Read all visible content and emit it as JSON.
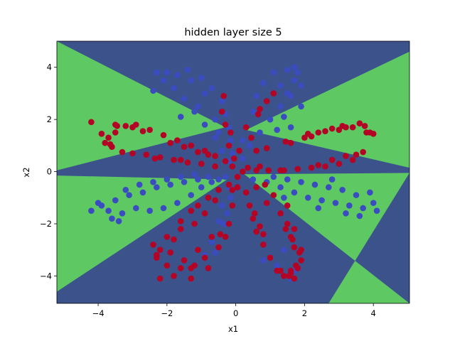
{
  "chart_data": {
    "type": "scatter",
    "title": "hidden layer size 5",
    "xlabel": "x1",
    "ylabel": "x2",
    "xlim": [
      -5.2,
      5.05
    ],
    "ylim": [
      -5.05,
      5.0
    ],
    "xticks": [
      -4,
      -2,
      0,
      2,
      4
    ],
    "yticks": [
      -4,
      -2,
      0,
      2,
      4
    ],
    "xtick_labels": [
      "−4",
      "−2",
      "0",
      "2",
      "4"
    ],
    "ytick_labels": [
      "−4",
      "−2",
      "0",
      "2",
      "4"
    ],
    "grid": false,
    "background": {
      "kind": "decision-regions",
      "colors": {
        "class_0": "#3b528b",
        "class_1": "#5ec962"
      },
      "class_1_regions": [
        [
          [
            -5.2,
            5.0
          ],
          [
            -0.3,
            1.7
          ],
          [
            -5.2,
            0.05
          ]
        ],
        [
          [
            5.05,
            4.6
          ],
          [
            0.3,
            1.6
          ],
          [
            5.05,
            0.15
          ]
        ],
        [
          [
            -5.2,
            -0.15
          ],
          [
            -0.25,
            -0.3
          ],
          [
            -5.2,
            -4.6
          ]
        ],
        [
          [
            5.05,
            -0.05
          ],
          [
            0.25,
            -0.1
          ],
          [
            5.05,
            -5.05
          ],
          [
            2.7,
            -5.05
          ]
        ]
      ]
    },
    "series": [
      {
        "color": "#3b4cc0",
        "points": [
          [
            -2.5,
            -1.5
          ],
          [
            -2.1,
            -1.4
          ],
          [
            -1.7,
            -1.2
          ],
          [
            -1.3,
            -0.9
          ],
          [
            -1.0,
            -0.6
          ],
          [
            -0.7,
            -0.4
          ],
          [
            -0.5,
            -0.3
          ],
          [
            -0.3,
            -0.2
          ],
          [
            -3.7,
            -1.5
          ],
          [
            -3.3,
            -1.6
          ],
          [
            -2.9,
            -1.4
          ],
          [
            -3.9,
            -1.3
          ],
          [
            -3.5,
            -1.1
          ],
          [
            -3.1,
            -0.9
          ],
          [
            -2.7,
            -0.8
          ],
          [
            -2.3,
            -0.6
          ],
          [
            -1.9,
            -0.5
          ],
          [
            -1.5,
            -0.4
          ],
          [
            -1.1,
            -0.3
          ],
          [
            -0.8,
            -0.2
          ],
          [
            -4.2,
            -1.5
          ],
          [
            -3.6,
            -1.8
          ],
          [
            -3.2,
            -0.7
          ],
          [
            -2.8,
            -0.5
          ],
          [
            -2.4,
            -0.4
          ],
          [
            -2.0,
            -0.3
          ],
          [
            -1.6,
            -0.2
          ],
          [
            -1.2,
            -0.1
          ],
          [
            -3.4,
            -1.9
          ],
          [
            -4.0,
            -1.2
          ],
          [
            -0.2,
            0.4
          ],
          [
            -0.4,
            0.8
          ],
          [
            -0.6,
            1.3
          ],
          [
            -0.9,
            1.8
          ],
          [
            -1.2,
            2.3
          ],
          [
            -1.5,
            2.8
          ],
          [
            -1.8,
            3.2
          ],
          [
            -2.1,
            3.5
          ],
          [
            -2.3,
            3.8
          ],
          [
            -1.4,
            3.9
          ],
          [
            -1.0,
            3.6
          ],
          [
            -0.7,
            3.2
          ],
          [
            -0.4,
            2.7
          ],
          [
            -0.3,
            2.2
          ],
          [
            -0.2,
            1.7
          ],
          [
            -0.15,
            1.2
          ],
          [
            -0.1,
            0.7
          ],
          [
            -2.0,
            3.8
          ],
          [
            -1.7,
            3.7
          ],
          [
            -1.3,
            3.5
          ],
          [
            -0.9,
            3.0
          ],
          [
            -1.6,
            2.1
          ],
          [
            -2.4,
            3.1
          ],
          [
            -0.6,
            2.0
          ],
          [
            -0.5,
            1.5
          ],
          [
            -1.1,
            2.5
          ],
          [
            0.2,
            0.5
          ],
          [
            0.4,
            1.0
          ],
          [
            0.7,
            1.5
          ],
          [
            1.0,
            2.0
          ],
          [
            1.3,
            2.5
          ],
          [
            1.5,
            3.0
          ],
          [
            1.7,
            3.5
          ],
          [
            1.8,
            3.8
          ],
          [
            1.5,
            3.9
          ],
          [
            1.1,
            3.8
          ],
          [
            0.8,
            3.4
          ],
          [
            0.6,
            2.9
          ],
          [
            0.5,
            2.3
          ],
          [
            0.3,
            1.7
          ],
          [
            0.2,
            1.2
          ],
          [
            1.6,
            2.9
          ],
          [
            1.4,
            2.1
          ],
          [
            1.9,
            3.3
          ],
          [
            1.2,
            1.6
          ],
          [
            0.9,
            2.7
          ],
          [
            1.7,
            4.0
          ],
          [
            1.3,
            3.3
          ],
          [
            1.6,
            1.7
          ],
          [
            1.9,
            2.5
          ],
          [
            0.5,
            -0.3
          ],
          [
            0.9,
            -0.4
          ],
          [
            1.3,
            -0.6
          ],
          [
            1.7,
            -0.8
          ],
          [
            2.1,
            -1.0
          ],
          [
            2.5,
            -1.1
          ],
          [
            2.9,
            -1.2
          ],
          [
            3.3,
            -1.3
          ],
          [
            3.7,
            -1.4
          ],
          [
            4.0,
            -1.2
          ],
          [
            3.5,
            -0.9
          ],
          [
            3.1,
            -0.7
          ],
          [
            2.7,
            -0.6
          ],
          [
            2.3,
            -0.5
          ],
          [
            1.9,
            -0.4
          ],
          [
            1.5,
            -0.3
          ],
          [
            1.1,
            -0.2
          ],
          [
            4.1,
            -1.5
          ],
          [
            3.2,
            -1.6
          ],
          [
            2.8,
            -0.3
          ],
          [
            3.6,
            -1.7
          ],
          [
            2.4,
            -1.4
          ],
          [
            3.9,
            -0.8
          ],
          [
            1.4,
            -1.0
          ],
          [
            -0.2,
            -0.6
          ],
          [
            -0.4,
            -1.3
          ],
          [
            -0.5,
            -1.9
          ],
          [
            -0.7,
            -2.7
          ],
          [
            -0.9,
            -3.2
          ],
          [
            -0.6,
            -3.1
          ],
          [
            -0.35,
            -2.0
          ],
          [
            -0.25,
            -1.6
          ],
          [
            -0.15,
            -1.0
          ],
          [
            0.8,
            -3.4
          ],
          [
            1.6,
            -4.1
          ],
          [
            1.2,
            -3.6
          ],
          [
            1.4,
            -3.0
          ],
          [
            1.7,
            -3.8
          ]
        ]
      },
      {
        "color": "#b40426",
        "points": [
          [
            -4.2,
            1.9
          ],
          [
            -3.9,
            1.45
          ],
          [
            -3.7,
            1.3
          ],
          [
            -3.5,
            1.5
          ],
          [
            -3.2,
            1.75
          ],
          [
            -2.9,
            1.8
          ],
          [
            -2.5,
            1.6
          ],
          [
            -2.1,
            1.4
          ],
          [
            -1.7,
            1.2
          ],
          [
            -1.3,
            1.0
          ],
          [
            -0.9,
            0.8
          ],
          [
            -0.6,
            0.6
          ],
          [
            -0.3,
            0.4
          ],
          [
            -3.0,
            0.7
          ],
          [
            -2.6,
            0.65
          ],
          [
            -2.2,
            0.55
          ],
          [
            -1.8,
            0.45
          ],
          [
            -1.4,
            0.35
          ],
          [
            -1.0,
            0.3
          ],
          [
            -0.6,
            0.2
          ],
          [
            -3.3,
            0.75
          ],
          [
            -3.6,
            0.95
          ],
          [
            -3.8,
            1.1
          ],
          [
            -3.5,
            1.8
          ],
          [
            -3.0,
            1.7
          ],
          [
            -2.7,
            1.55
          ],
          [
            -1.9,
            1.1
          ],
          [
            -1.5,
            0.95
          ],
          [
            -1.1,
            0.75
          ],
          [
            -3.65,
            1.05
          ],
          [
            -3.45,
            1.75
          ],
          [
            -2.35,
            0.5
          ],
          [
            -1.6,
            0.45
          ],
          [
            -0.8,
            0.65
          ],
          [
            -0.1,
            0.2
          ],
          [
            -0.2,
            1.0
          ],
          [
            -0.3,
            1.8
          ],
          [
            -0.4,
            2.3
          ],
          [
            -0.35,
            2.9
          ],
          [
            -0.15,
            1.5
          ],
          [
            0.1,
            0.8
          ],
          [
            0.3,
            1.7
          ],
          [
            0.7,
            2.4
          ],
          [
            0.9,
            2.7
          ],
          [
            1.1,
            3.0
          ],
          [
            0.65,
            2.2
          ],
          [
            0.45,
            1.3
          ],
          [
            -0.05,
            0.5
          ],
          [
            0.2,
            0.0
          ],
          [
            0.6,
            0.05
          ],
          [
            0.95,
            0.05
          ],
          [
            1.4,
            0.05
          ],
          [
            1.8,
            0.1
          ],
          [
            2.2,
            0.15
          ],
          [
            2.6,
            0.2
          ],
          [
            3.0,
            0.3
          ],
          [
            3.4,
            0.45
          ],
          [
            3.7,
            0.75
          ],
          [
            3.5,
            0.65
          ],
          [
            3.2,
            0.6
          ],
          [
            2.8,
            0.45
          ],
          [
            2.4,
            0.25
          ],
          [
            1.3,
            0.05
          ],
          [
            0.7,
            0.2
          ],
          [
            0.35,
            0.15
          ],
          [
            1.6,
            1.1
          ],
          [
            2.0,
            1.3
          ],
          [
            2.4,
            1.5
          ],
          [
            2.8,
            1.65
          ],
          [
            3.2,
            1.7
          ],
          [
            3.6,
            1.85
          ],
          [
            4.0,
            1.45
          ],
          [
            3.8,
            1.5
          ],
          [
            3.4,
            1.7
          ],
          [
            3.0,
            1.6
          ],
          [
            2.6,
            1.55
          ],
          [
            2.1,
            1.45
          ],
          [
            3.9,
            1.5
          ],
          [
            3.75,
            1.75
          ],
          [
            3.1,
            1.75
          ],
          [
            2.2,
            1.35
          ],
          [
            1.45,
            1.15
          ],
          [
            0.9,
            0.9
          ],
          [
            0.6,
            0.8
          ],
          [
            0.05,
            -0.2
          ],
          [
            -0.2,
            -0.5
          ],
          [
            -0.5,
            -0.7
          ],
          [
            -0.8,
            -1.0
          ],
          [
            -1.1,
            -1.3
          ],
          [
            -1.3,
            -1.5
          ],
          [
            -1.6,
            -1.9
          ],
          [
            -2.0,
            -2.5
          ],
          [
            -2.2,
            -3.0
          ],
          [
            -2.3,
            -3.2
          ],
          [
            -2.0,
            -3.6
          ],
          [
            -1.6,
            -3.7
          ],
          [
            -1.2,
            -3.6
          ],
          [
            -0.9,
            -3.3
          ],
          [
            -0.5,
            -2.9
          ],
          [
            -0.3,
            -2.5
          ],
          [
            -0.2,
            -2.0
          ],
          [
            -0.1,
            -1.3
          ],
          [
            -1.9,
            -3.1
          ],
          [
            -1.5,
            -3.4
          ],
          [
            -1.1,
            -3.0
          ],
          [
            -0.7,
            -2.5
          ],
          [
            -1.8,
            -2.6
          ],
          [
            -2.4,
            -2.8
          ],
          [
            -2.3,
            -3.3
          ],
          [
            -1.3,
            -3.7
          ],
          [
            -2.2,
            -4.1
          ],
          [
            -1.3,
            -4.1
          ],
          [
            -1.8,
            -4.0
          ],
          [
            -0.8,
            -3.7
          ],
          [
            -0.45,
            -2.4
          ],
          [
            -1.6,
            -2.2
          ],
          [
            -1.2,
            -2.0
          ],
          [
            -0.9,
            -1.6
          ],
          [
            -0.6,
            -1.1
          ],
          [
            -0.1,
            -0.7
          ],
          [
            0.05,
            -0.6
          ],
          [
            0.3,
            -0.8
          ],
          [
            0.4,
            -1.3
          ],
          [
            0.5,
            -1.8
          ],
          [
            0.6,
            -2.3
          ],
          [
            0.8,
            -2.8
          ],
          [
            1.0,
            -3.3
          ],
          [
            1.2,
            -3.8
          ],
          [
            1.4,
            -4.0
          ],
          [
            1.6,
            -3.9
          ],
          [
            1.8,
            -3.7
          ],
          [
            1.9,
            -3.4
          ],
          [
            1.7,
            -2.9
          ],
          [
            1.6,
            -2.5
          ],
          [
            1.5,
            -2.0
          ],
          [
            1.3,
            -1.6
          ],
          [
            0.9,
            -1.2
          ],
          [
            0.6,
            -0.6
          ],
          [
            1.1,
            -0.9
          ],
          [
            1.5,
            -1.3
          ],
          [
            1.7,
            -2.2
          ],
          [
            1.9,
            -3.0
          ],
          [
            1.7,
            -4.1
          ],
          [
            1.3,
            -3.8
          ],
          [
            0.7,
            -2.1
          ],
          [
            0.8,
            -2.4
          ],
          [
            0.55,
            -1.6
          ],
          [
            0.85,
            -0.5
          ],
          [
            1.6,
            -3.8
          ],
          [
            1.55,
            -4.0
          ],
          [
            1.75,
            -3.6
          ],
          [
            1.85,
            -3.1
          ],
          [
            1.65,
            -2.6
          ],
          [
            1.45,
            -2.2
          ]
        ]
      }
    ]
  }
}
